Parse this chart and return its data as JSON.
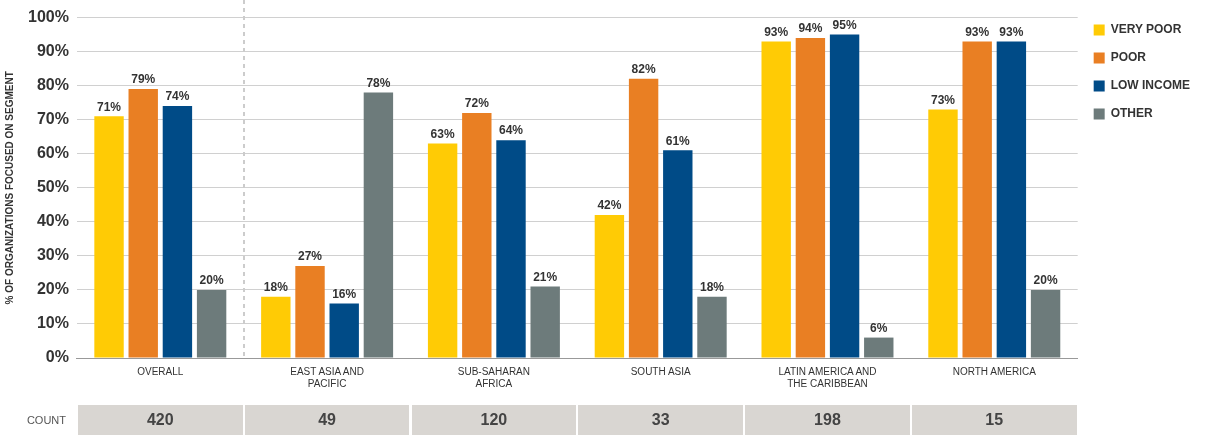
{
  "chart_data": {
    "type": "bar",
    "ylabel": "% OF ORGANIZATIONS FOCUSED ON SEGMENT",
    "categories": [
      "OVERALL",
      "EAST ASIA AND PACIFIC",
      "SUB-SAHARAN AFRICA",
      "SOUTH ASIA",
      "LATIN AMERICA AND THE CARIBBEAN",
      "NORTH AMERICA"
    ],
    "series": [
      {
        "name": "VERY POOR",
        "color": "#ffcb05",
        "values": [
          71,
          18,
          63,
          42,
          93,
          73
        ],
        "value_labels": [
          "71%",
          "18%",
          "63%",
          "42%",
          "93%",
          "73%"
        ]
      },
      {
        "name": "POOR",
        "color": "#e97f23",
        "values": [
          79,
          27,
          72,
          82,
          94,
          93
        ],
        "value_labels": [
          "79%",
          "27%",
          "72%",
          "82%",
          "94%",
          "93%"
        ]
      },
      {
        "name": "LOW INCOME",
        "color": "#004b87",
        "values": [
          74,
          16,
          64,
          61,
          95,
          93
        ],
        "value_labels": [
          "74%",
          "16%",
          "64%",
          "61%",
          "95%",
          "93%"
        ]
      },
      {
        "name": "OTHER",
        "color": "#6d7b7b",
        "values": [
          20,
          78,
          21,
          18,
          6,
          20
        ],
        "value_labels": [
          "20%",
          "78%",
          "21%",
          "18%",
          "6%",
          "20%"
        ]
      }
    ],
    "ylim": [
      0,
      100
    ],
    "yticks": [
      {
        "value": 0,
        "label": "0%"
      },
      {
        "value": 10,
        "label": "10%"
      },
      {
        "value": 20,
        "label": "20%"
      },
      {
        "value": 30,
        "label": "30%"
      },
      {
        "value": 40,
        "label": "40%"
      },
      {
        "value": 50,
        "label": "50%"
      },
      {
        "value": 60,
        "label": "60%"
      },
      {
        "value": 70,
        "label": "70%"
      },
      {
        "value": 80,
        "label": "80%"
      },
      {
        "value": 90,
        "label": "90%"
      },
      {
        "value": 100,
        "label": "100%"
      }
    ],
    "grid": "y",
    "legend": "top right",
    "annotations": [
      "COUNT",
      "420",
      "49",
      "120",
      "33",
      "198",
      "15"
    ]
  }
}
